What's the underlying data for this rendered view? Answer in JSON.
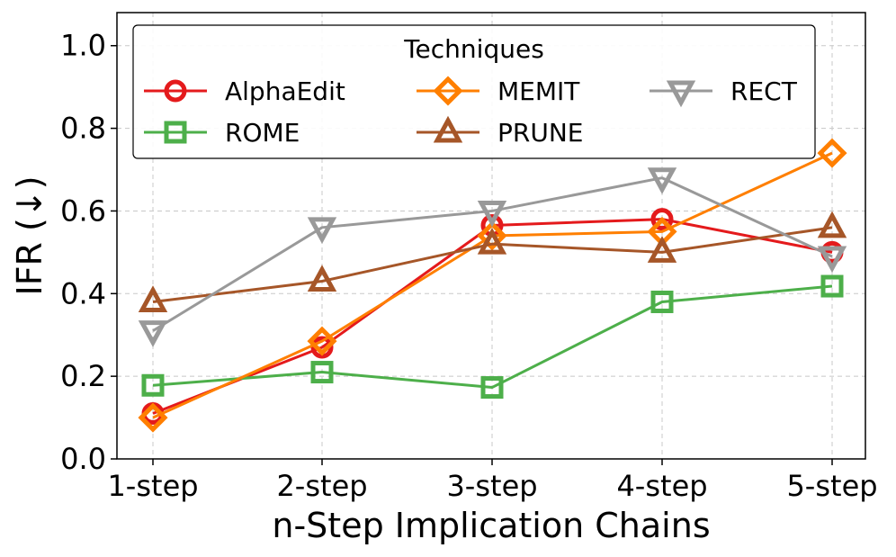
{
  "chart_data": {
    "type": "line",
    "categories": [
      "1-step",
      "2-step",
      "3-step",
      "4-step",
      "5-step"
    ],
    "xlabel": "n-Step Implication Chains",
    "ylabel": "IFR (↓)",
    "ylim": [
      0,
      1.08
    ],
    "yticks": [
      "0.0",
      "0.2",
      "0.4",
      "0.6",
      "0.8",
      "1.0"
    ],
    "grid": true,
    "legend": {
      "title": "Techniques",
      "placement": "top-left",
      "columns": 3
    },
    "series": [
      {
        "name": "AlphaEdit",
        "color": "#e41a1c",
        "marker": "circle",
        "values": [
          0.11,
          0.27,
          0.565,
          0.58,
          0.5
        ]
      },
      {
        "name": "ROME",
        "color": "#4daf4a",
        "marker": "square",
        "values": [
          0.178,
          0.21,
          0.173,
          0.38,
          0.418
        ]
      },
      {
        "name": "MEMIT",
        "color": "#ff7f00",
        "marker": "diamond",
        "values": [
          0.1,
          0.285,
          0.54,
          0.55,
          0.74
        ]
      },
      {
        "name": "PRUNE",
        "color": "#a65628",
        "marker": "triangle-up",
        "values": [
          0.38,
          0.43,
          0.52,
          0.5,
          0.56
        ]
      },
      {
        "name": "RECT",
        "color": "#999999",
        "marker": "triangle-down",
        "values": [
          0.31,
          0.56,
          0.6,
          0.68,
          0.49
        ]
      }
    ]
  }
}
